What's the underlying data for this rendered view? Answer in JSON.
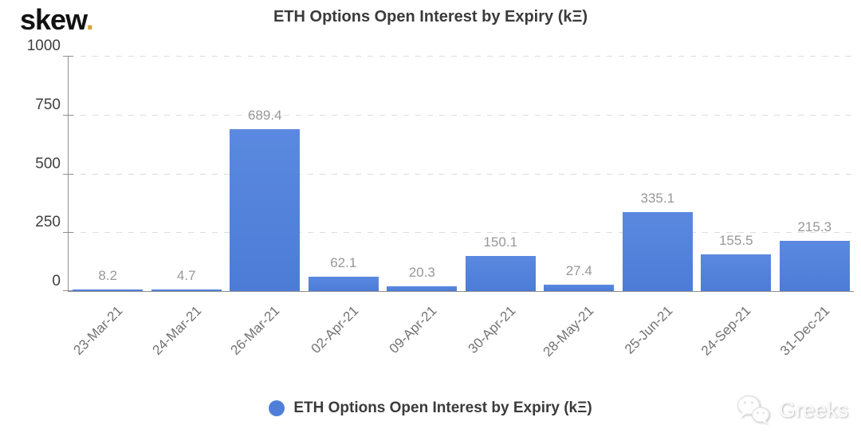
{
  "logo": {
    "text": "skew",
    "dot": "."
  },
  "header": {
    "title": "ETH Options Open Interest by Expiry (kΞ)"
  },
  "legend": {
    "label": "ETH Options Open Interest by Expiry (kΞ)"
  },
  "watermark": {
    "text": "Greeks",
    "icon": "wechat-icon"
  },
  "colors": {
    "bar": "#4F80D9",
    "value_label": "#989898",
    "axis_label": "#3F3F3F",
    "x_label": "#737373",
    "gridline": "#DCDCDC",
    "axis_line": "#8F8F8F",
    "logo_dot": "#D8A43C",
    "title": "#3B3B3B"
  },
  "chart_data": {
    "type": "bar",
    "title": "ETH Options Open Interest by Expiry (kΞ)",
    "categories": [
      "23-Mar-21",
      "24-Mar-21",
      "26-Mar-21",
      "02-Apr-21",
      "09-Apr-21",
      "30-Apr-21",
      "28-May-21",
      "25-Jun-21",
      "24-Sep-21",
      "31-Dec-21"
    ],
    "values": [
      8.2,
      4.7,
      689.4,
      62.1,
      20.3,
      150.1,
      27.4,
      335.1,
      155.5,
      215.3
    ],
    "value_labels": [
      "8.2",
      "4.7",
      "689.4",
      "62.1",
      "20.3",
      "150.1",
      "27.4",
      "335.1",
      "155.5",
      "215.3"
    ],
    "xlabel": "",
    "ylabel": "",
    "y_ticks": [
      0,
      250,
      500,
      750,
      1000
    ],
    "ylim": [
      0,
      1000
    ],
    "grid": "dashed-horizontal",
    "legend_position": "bottom-center"
  }
}
